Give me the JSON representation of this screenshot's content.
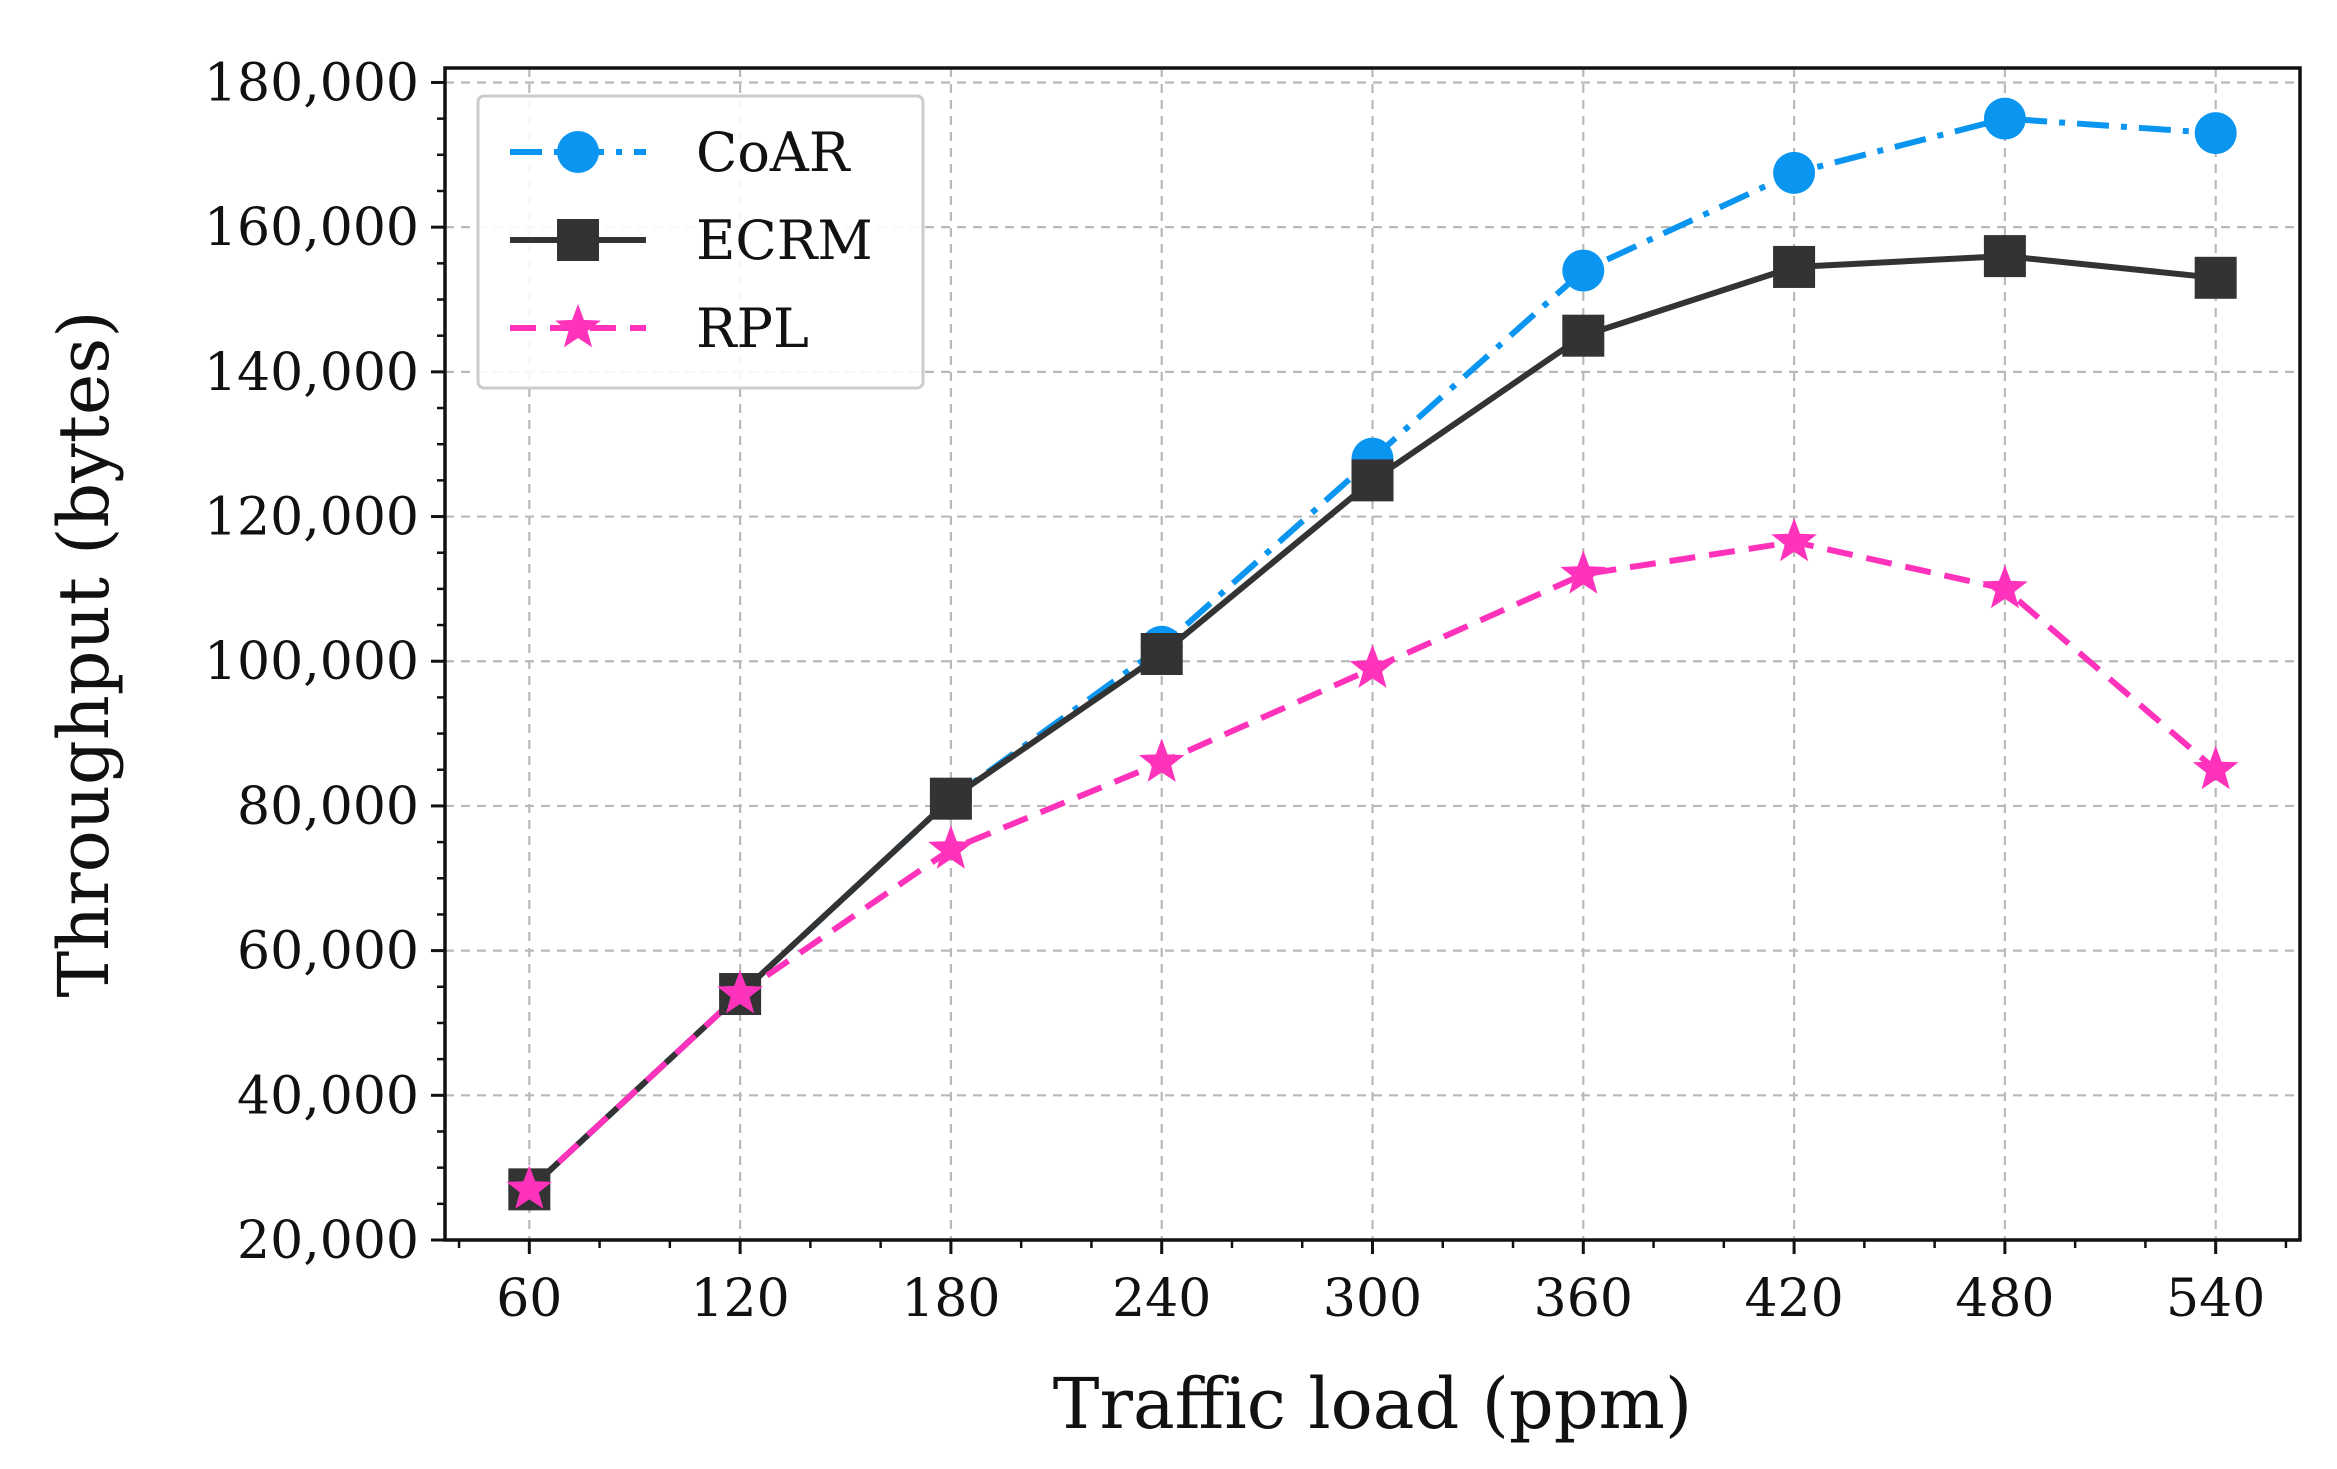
{
  "chart_data": {
    "type": "line",
    "title": "",
    "xlabel": "Traffic load (ppm)",
    "ylabel": "Throughput (bytes)",
    "x": [
      60,
      120,
      180,
      240,
      300,
      360,
      420,
      480,
      540
    ],
    "x_tick_labels": [
      "60",
      "120",
      "180",
      "240",
      "300",
      "360",
      "420",
      "480",
      "540"
    ],
    "xlim": [
      36,
      564
    ],
    "ylim": [
      20000,
      182000
    ],
    "y_ticks": [
      20000,
      40000,
      60000,
      80000,
      100000,
      120000,
      140000,
      160000,
      180000
    ],
    "y_tick_labels": [
      "20,000",
      "40,000",
      "60,000",
      "80,000",
      "100,000",
      "120,000",
      "140,000",
      "160,000",
      "180,000"
    ],
    "grid": true,
    "legend_position": "top-left",
    "series": [
      {
        "name": "CoAR",
        "color": "#0a96f0",
        "line_style": "dashdot",
        "marker": "circle",
        "values": [
          27000,
          54000,
          81000,
          102000,
          128000,
          154000,
          167500,
          175000,
          173000
        ]
      },
      {
        "name": "ECRM",
        "color": "#333333",
        "line_style": "solid",
        "marker": "square",
        "values": [
          27000,
          54000,
          81000,
          101000,
          125000,
          145000,
          154500,
          156000,
          153000
        ]
      },
      {
        "name": "RPL",
        "color": "#ff33bb",
        "line_style": "dashed",
        "marker": "star",
        "values": [
          27000,
          54000,
          74000,
          86000,
          99000,
          112000,
          116500,
          110000,
          85000
        ]
      }
    ]
  }
}
